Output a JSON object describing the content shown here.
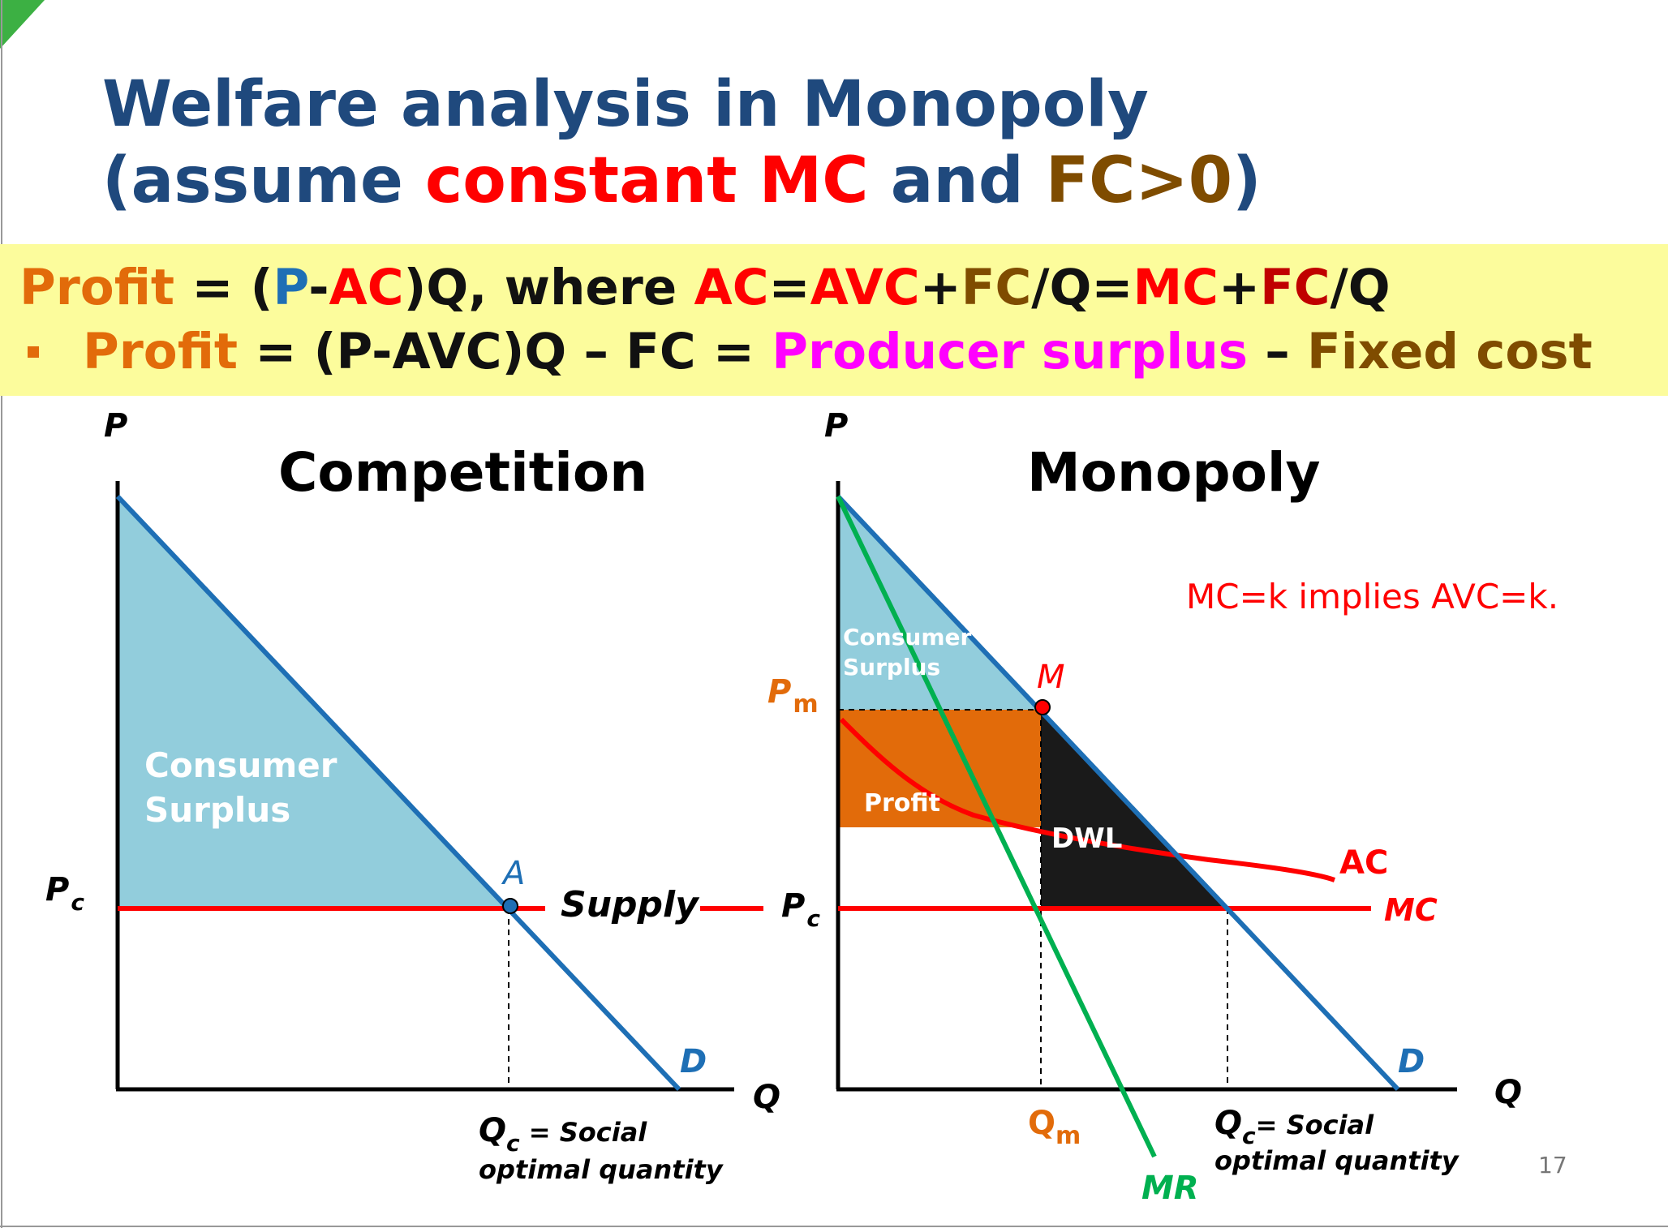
{
  "title": {
    "line1": "Welfare analysis in Monopoly",
    "line2_a": "(assume ",
    "line2_b": "constant MC",
    "line2_c": " and ",
    "line2_d": "FC>0",
    "line2_e": ")"
  },
  "formula1": {
    "p1": "Profit",
    "p2": " = (",
    "p3": "P",
    "p4": "-",
    "p5": "AC",
    "p6": ")Q, where ",
    "p7": "AC",
    "p8": "=",
    "p9": "AVC",
    "p10": "+",
    "p11": "FC",
    "p12": "/Q=",
    "p13": "MC",
    "p14": "+",
    "p15": "FC",
    "p16": "/Q"
  },
  "formula2": {
    "p1": "Profit",
    "p2": " = (P-AVC)Q – FC = ",
    "p3": "Producer surplus",
    "p4": " – ",
    "p5": "Fixed cost"
  },
  "competition": {
    "title": "Competition",
    "p_axis": "P",
    "q_axis": "Q",
    "pc": "P",
    "pc_sub": "c",
    "cs_line1": "Consumer",
    "cs_line2": "Surplus",
    "point": "A",
    "supply": "Supply",
    "d": "D",
    "qc": "Q",
    "qc_sub": "c",
    "qc_rest": " = Social",
    "qc_line2": "optimal quantity"
  },
  "monopoly": {
    "title": "Monopoly",
    "p_axis": "P",
    "q_axis": "Q",
    "pc": "P",
    "pc_sub": "c",
    "pm": "P",
    "pm_sub": "m",
    "cs_line1": "Consumer",
    "cs_line2": "Surplus",
    "profit": "Profit",
    "dwl": "DWL",
    "point": "M",
    "ac": "AC",
    "mc": "MC",
    "d": "D",
    "mr": "MR",
    "qm": "Q",
    "qm_sub": "m",
    "qc": "Q",
    "qc_sub": "c",
    "qc_rest": "= Social",
    "qc_line2": "optimal quantity",
    "note": "MC=k implies AVC=k."
  },
  "page_number": "17",
  "colors": {
    "title": "#1f497d",
    "band": "#fcfc9c",
    "demand": "#1e6fb5",
    "mc": "#ff0000",
    "mr": "#00b050",
    "cs": "#92cddc",
    "profit": "#e26b0a",
    "dwl": "#1a1a1a"
  }
}
